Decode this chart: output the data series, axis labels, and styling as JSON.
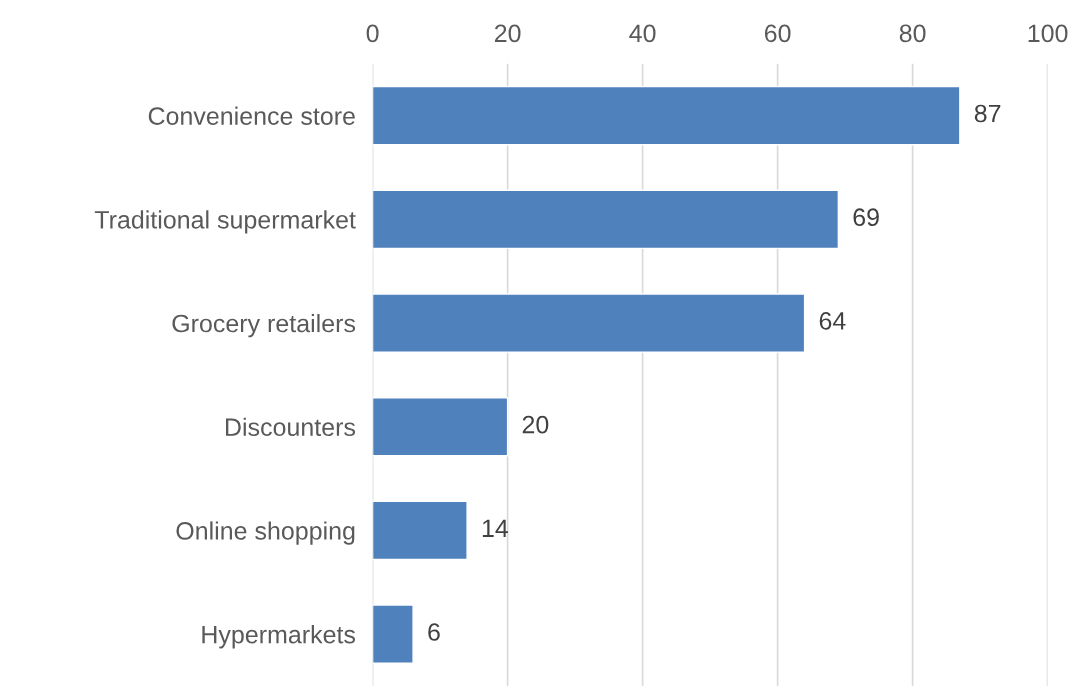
{
  "chart_data": {
    "type": "bar",
    "orientation": "horizontal",
    "categories": [
      "Convenience store",
      "Traditional supermarket",
      "Grocery retailers",
      "Discounters",
      "Online shopping",
      "Hypermarkets"
    ],
    "values": [
      87,
      69,
      64,
      20,
      14,
      6
    ],
    "color": "#4f81bd",
    "xlim": [
      0,
      100
    ],
    "xticks": [
      0,
      20,
      40,
      60,
      80,
      100
    ],
    "grid": "x",
    "data_labels": true
  }
}
